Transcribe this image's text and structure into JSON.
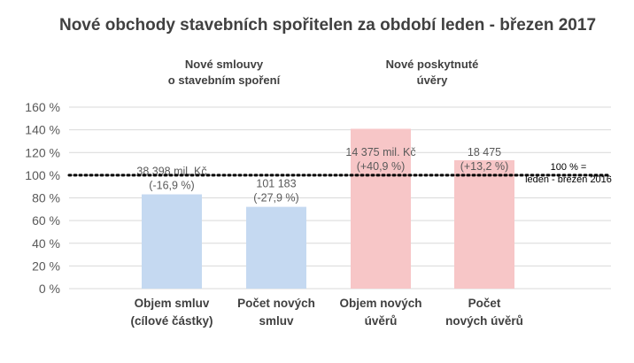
{
  "chart_data": {
    "type": "bar",
    "title": "Nové obchody stavebních spořitelen za období leden - březen 2017",
    "groups": [
      {
        "label_lines": [
          "Nové smlouvy",
          "o stavebním spoření"
        ]
      },
      {
        "label_lines": [
          "Nové poskytnuté",
          "úvěry"
        ]
      }
    ],
    "categories": [
      {
        "lines": [
          "Objem smluv",
          "(cílové částky)"
        ]
      },
      {
        "lines": [
          "Počet  nových",
          "smluv"
        ]
      },
      {
        "lines": [
          "Objem nových",
          "úvěrů"
        ]
      },
      {
        "lines": [
          "Počet",
          "nových úvěrů"
        ]
      }
    ],
    "values": [
      83.1,
      72.1,
      140.9,
      113.2
    ],
    "data_labels": [
      [
        "38 398 mil. Kč",
        "(-16,9 %)"
      ],
      [
        "101 183",
        "(-27,9 %)"
      ],
      [
        "14 375 mil. Kč",
        "(+40,9 %)"
      ],
      [
        "18 475",
        "(+13,2 %)"
      ]
    ],
    "bar_colors": [
      "#c5d9f1",
      "#c5d9f1",
      "#f7c6c7",
      "#f7c6c7"
    ],
    "y_ticks": [
      "0 %",
      "20 %",
      "40 %",
      "60 %",
      "80 %",
      "100 %",
      "120 %",
      "140 %",
      "160 %"
    ],
    "ylim": [
      0,
      160
    ],
    "grid": true,
    "reference_line": {
      "value": 100,
      "label_lines": [
        "100 % =",
        "leden - březen 2016"
      ],
      "style": "dotted",
      "color": "#000000"
    }
  }
}
